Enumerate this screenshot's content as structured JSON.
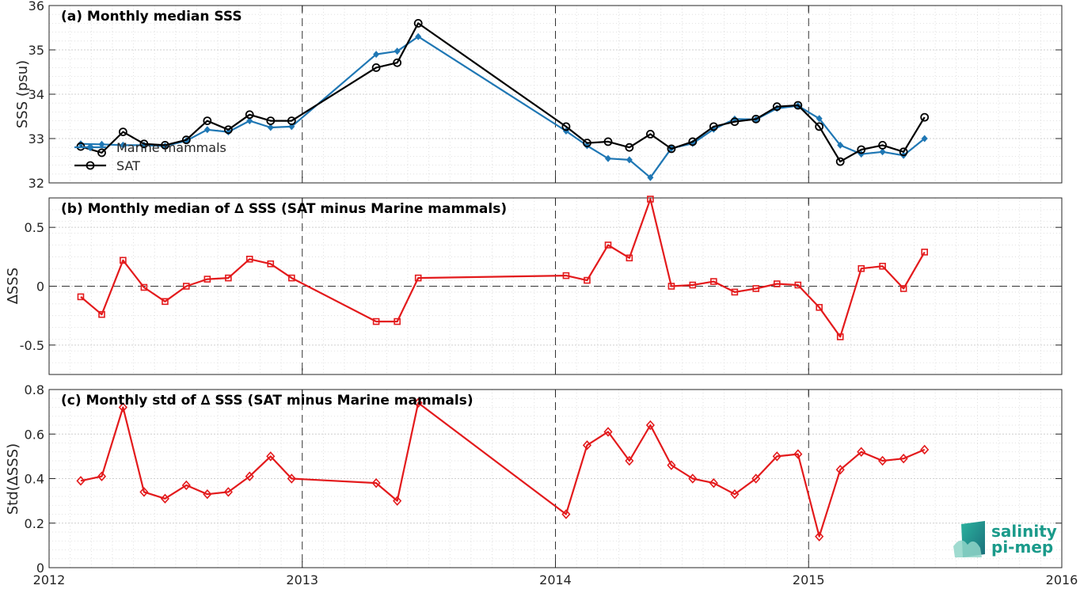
{
  "chart_data": [
    {
      "type": "line",
      "title": "(a) Monthly median SSS",
      "ylabel": "SSS (psu)",
      "xlim": [
        2012,
        2016
      ],
      "ylim": [
        32,
        36
      ],
      "yticks": [
        32,
        33,
        34,
        35,
        36
      ],
      "grid": true,
      "legend_placement": "bottom-left",
      "series": [
        {
          "name": "Marine mammals",
          "color": "#1f77b4",
          "marker": "diamond-filled",
          "x": [
            2012.125,
            2012.208,
            2012.292,
            2012.375,
            2012.458,
            2012.542,
            2012.625,
            2012.708,
            2012.792,
            2012.875,
            2012.958,
            2013.292,
            2013.375,
            2013.458,
            2014.042,
            2014.125,
            2014.208,
            2014.292,
            2014.375,
            2014.458,
            2014.542,
            2014.625,
            2014.708,
            2014.792,
            2014.875,
            2014.958,
            2015.042,
            2015.125,
            2015.208,
            2015.292,
            2015.375,
            2015.458
          ],
          "y": [
            32.88,
            32.87,
            32.85,
            32.85,
            32.83,
            32.95,
            33.2,
            33.15,
            33.4,
            33.25,
            33.27,
            34.9,
            34.97,
            35.3,
            33.17,
            32.84,
            32.55,
            32.52,
            32.12,
            32.78,
            32.89,
            33.21,
            33.44,
            33.43,
            33.68,
            33.74,
            33.45,
            32.85,
            32.65,
            32.7,
            32.62,
            33.0
          ]
        },
        {
          "name": "SAT",
          "color": "#000000",
          "marker": "circle-open",
          "x": [
            2012.125,
            2012.208,
            2012.292,
            2012.375,
            2012.458,
            2012.542,
            2012.625,
            2012.708,
            2012.792,
            2012.875,
            2012.958,
            2013.292,
            2013.375,
            2013.458,
            2014.042,
            2014.125,
            2014.208,
            2014.292,
            2014.375,
            2014.458,
            2014.542,
            2014.625,
            2014.708,
            2014.792,
            2014.875,
            2014.958,
            2015.042,
            2015.125,
            2015.208,
            2015.292,
            2015.375,
            2015.458
          ],
          "y": [
            32.82,
            32.68,
            33.15,
            32.88,
            32.85,
            32.97,
            33.4,
            33.2,
            33.54,
            33.4,
            33.4,
            34.6,
            34.71,
            35.6,
            33.27,
            32.9,
            32.93,
            32.8,
            33.1,
            32.77,
            32.93,
            33.27,
            33.38,
            33.44,
            33.72,
            33.75,
            33.27,
            32.48,
            32.75,
            32.85,
            32.7,
            33.48
          ]
        }
      ]
    },
    {
      "type": "line",
      "title": "(b) Monthly median of ∆ SSS (SAT minus Marine mammals)",
      "ylabel": "∆SSS",
      "xlim": [
        2012,
        2016
      ],
      "ylim": [
        -0.75,
        0.75
      ],
      "yticks": [
        -0.5,
        0,
        0.5
      ],
      "ytick_labels": [
        "-0.5",
        "0",
        "0.5"
      ],
      "grid": true,
      "zero_line": true,
      "series": [
        {
          "color": "#e31a1c",
          "marker": "square-open",
          "x": [
            2012.125,
            2012.208,
            2012.292,
            2012.375,
            2012.458,
            2012.542,
            2012.625,
            2012.708,
            2012.792,
            2012.875,
            2012.958,
            2013.292,
            2013.375,
            2013.458,
            2014.042,
            2014.125,
            2014.208,
            2014.292,
            2014.375,
            2014.458,
            2014.542,
            2014.625,
            2014.708,
            2014.792,
            2014.875,
            2014.958,
            2015.042,
            2015.125,
            2015.208,
            2015.292,
            2015.375,
            2015.458
          ],
          "y": [
            -0.09,
            -0.24,
            0.22,
            -0.01,
            -0.13,
            0.0,
            0.06,
            0.07,
            0.23,
            0.19,
            0.07,
            -0.3,
            -0.3,
            0.07,
            0.09,
            0.05,
            0.35,
            0.24,
            0.74,
            0.0,
            0.01,
            0.04,
            -0.05,
            -0.02,
            0.02,
            0.01,
            -0.18,
            -0.43,
            0.15,
            0.17,
            -0.02,
            0.29
          ]
        }
      ]
    },
    {
      "type": "line",
      "title": "(c) Monthly std of ∆ SSS (SAT minus Marine mammals)",
      "ylabel": "Std(∆SSS)",
      "xlim": [
        2012,
        2016
      ],
      "ylim": [
        0,
        0.8
      ],
      "yticks": [
        0,
        0.2,
        0.4,
        0.6,
        0.8
      ],
      "ytick_labels": [
        "0",
        "0.2",
        "0.4",
        "0.6",
        "0.8"
      ],
      "xticks": [
        2012,
        2013,
        2014,
        2015,
        2016
      ],
      "xtick_labels": [
        "2012",
        "2013",
        "2014",
        "2015",
        "2016"
      ],
      "grid": true,
      "series": [
        {
          "color": "#e31a1c",
          "marker": "diamond-open",
          "x": [
            2012.125,
            2012.208,
            2012.292,
            2012.375,
            2012.458,
            2012.542,
            2012.625,
            2012.708,
            2012.792,
            2012.875,
            2012.958,
            2013.292,
            2013.375,
            2013.458,
            2014.042,
            2014.125,
            2014.208,
            2014.292,
            2014.375,
            2014.458,
            2014.542,
            2014.625,
            2014.708,
            2014.792,
            2014.875,
            2014.958,
            2015.042,
            2015.125,
            2015.208,
            2015.292,
            2015.375,
            2015.458
          ],
          "y": [
            0.39,
            0.41,
            0.72,
            0.34,
            0.31,
            0.37,
            0.33,
            0.34,
            0.41,
            0.5,
            0.4,
            0.38,
            0.3,
            0.74,
            0.24,
            0.55,
            0.61,
            0.48,
            0.64,
            0.46,
            0.4,
            0.38,
            0.33,
            0.4,
            0.5,
            0.51,
            0.14,
            0.44,
            0.52,
            0.48,
            0.49,
            0.53
          ]
        }
      ]
    }
  ],
  "logo": {
    "line1": "salinity",
    "line2": "pi-mep",
    "color": "#1a9a8a"
  }
}
